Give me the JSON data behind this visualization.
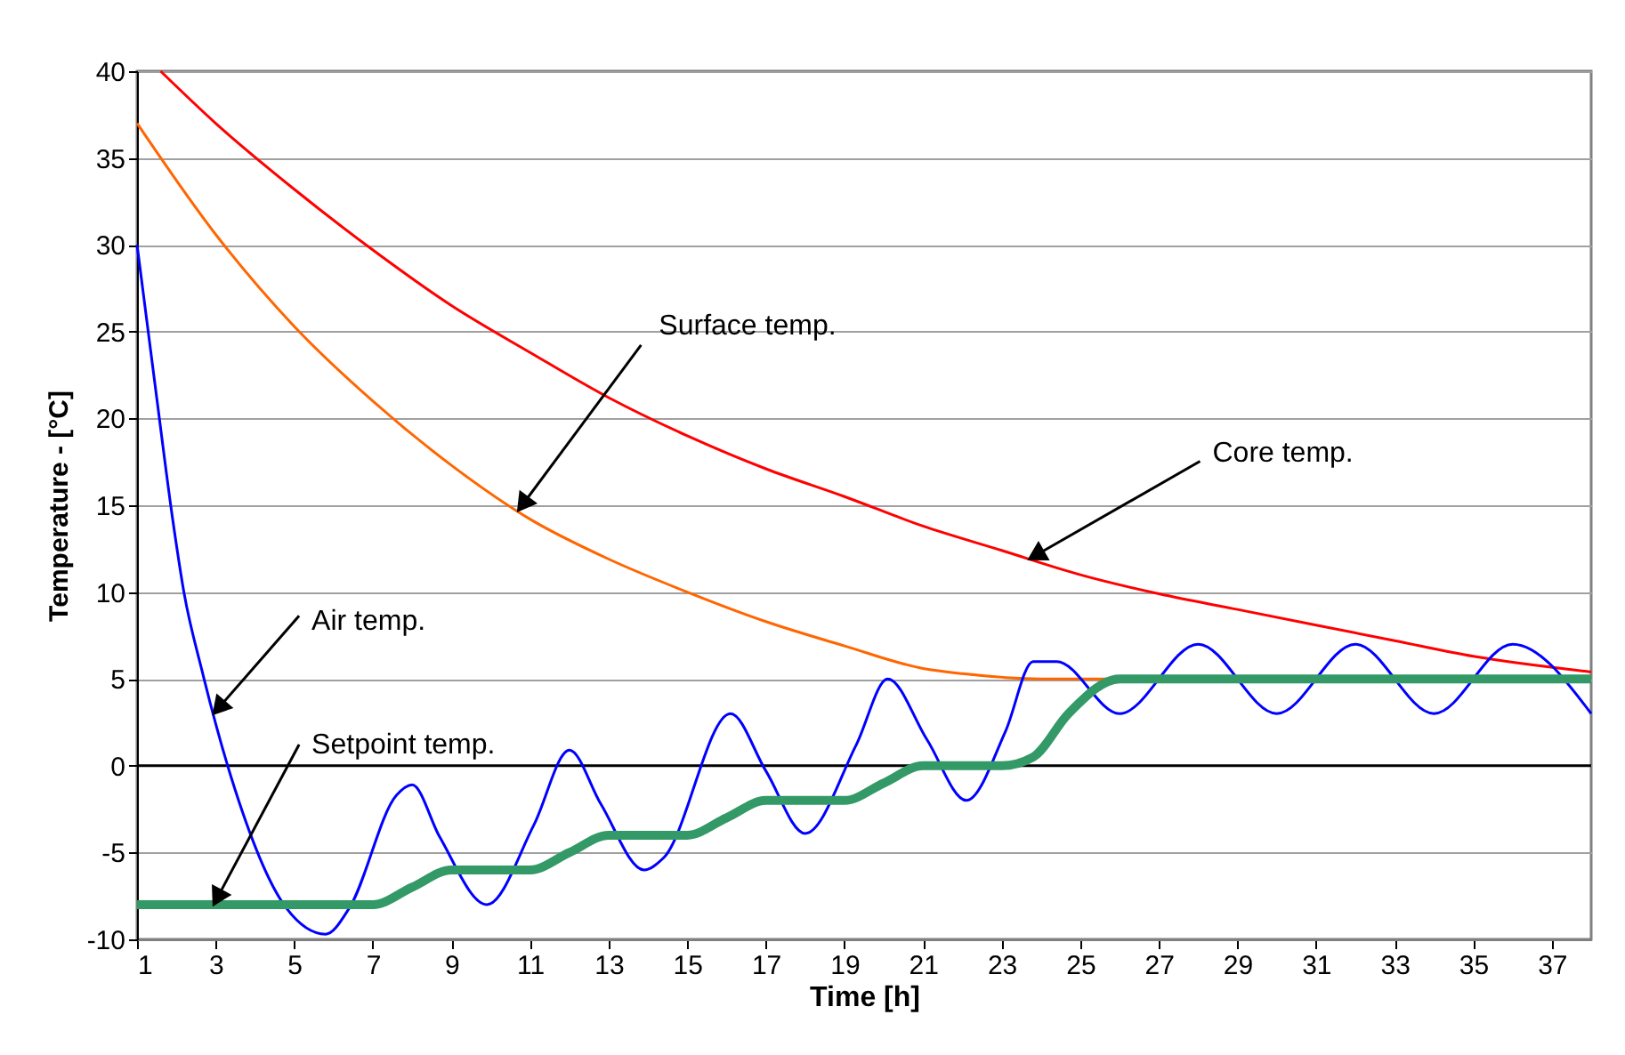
{
  "chart_data": {
    "type": "line",
    "xlabel": "Time [h]",
    "ylabel": "Temperature - [°C]",
    "xlim": [
      1,
      38
    ],
    "ylim": [
      -10,
      40
    ],
    "xticks": [
      1,
      3,
      5,
      7,
      9,
      11,
      13,
      15,
      17,
      19,
      21,
      23,
      25,
      27,
      29,
      31,
      33,
      35,
      37
    ],
    "yticks": [
      -10,
      -5,
      0,
      5,
      10,
      15,
      20,
      25,
      30,
      35,
      40
    ],
    "grid": "y",
    "marker": "none",
    "line_style": "solid",
    "ref_lines": [
      {
        "axis": "y",
        "value": 0,
        "color": "#000000"
      }
    ],
    "series": [
      {
        "color": "#ff0000",
        "x": [
          1.6,
          3,
          5,
          7,
          9,
          11,
          13,
          15,
          17,
          19,
          21,
          23,
          25,
          27,
          29,
          31,
          33,
          35,
          38
        ],
        "values": [
          40,
          37,
          33.2,
          29.7,
          26.5,
          23.8,
          21.2,
          19.0,
          17.1,
          15.5,
          13.8,
          12.4,
          11.0,
          9.9,
          9.0,
          8.1,
          7.2,
          6.3,
          5.4
        ]
      },
      {
        "color": "#ff6600",
        "x": [
          1,
          3,
          5,
          7,
          9,
          11,
          13,
          15,
          17,
          19,
          21,
          22,
          24,
          38
        ],
        "values": [
          37,
          30.6,
          25.3,
          21,
          17.3,
          14.2,
          11.9,
          10,
          8.3,
          6.9,
          5.6,
          5.3,
          5.0,
          5.0
        ]
      },
      {
        "color": "#0000ff",
        "x": [
          1,
          1.5,
          1.9,
          2.2,
          2.65,
          3.4,
          4.8,
          5.8,
          6.4,
          7.6,
          8,
          8.7,
          9.9,
          11.1,
          12,
          12.8,
          13.9,
          14.4,
          16.1,
          17,
          18,
          19.3,
          20.1,
          21.1,
          22.1,
          23.1,
          23.8,
          24.4,
          26,
          28,
          30,
          32,
          34,
          36,
          38
        ],
        "values": [
          30,
          21.2,
          14.3,
          9.9,
          5.5,
          -0.7,
          -8.2,
          -9.7,
          -8.2,
          -1.7,
          -1.1,
          -4.1,
          -8.0,
          -3.4,
          0.9,
          -2.2,
          -6.0,
          -5.3,
          3.0,
          -0.3,
          -3.9,
          1.2,
          5.0,
          1.5,
          -2.0,
          2.0,
          6.0,
          6.0,
          3,
          7,
          3,
          7,
          3,
          7,
          3
        ]
      },
      {
        "color": "#339966",
        "x": [
          1,
          7,
          8,
          9,
          11,
          12,
          13,
          15,
          16,
          17,
          19,
          20,
          21,
          23,
          23.8,
          24.7,
          26,
          38
        ],
        "values": [
          -8,
          -8,
          -7,
          -6,
          -6,
          -5,
          -4,
          -4,
          -3,
          -2,
          -2,
          -1,
          0,
          0,
          0.5,
          3,
          5,
          5
        ]
      }
    ],
    "annotations": [
      {
        "text": "Surface temp.",
        "x": 10.7,
        "y": 14.7
      },
      {
        "text": "Core temp.",
        "x": 23.7,
        "y": 11.9
      },
      {
        "text": "Air temp.",
        "x": 2.95,
        "y": 3.0
      },
      {
        "text": "Setpoint temp.",
        "x": 2.95,
        "y": -8
      }
    ]
  }
}
